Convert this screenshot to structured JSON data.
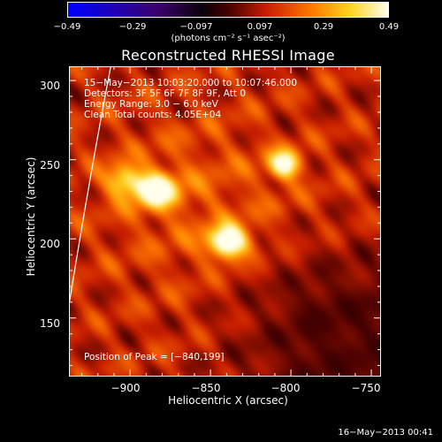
{
  "chart_data": {
    "type": "heatmap",
    "title": "Reconstructed RHESSI Image",
    "xlabel": "Heliocentric X (arcsec)",
    "ylabel": "Heliocentric Y (arcsec)",
    "xlim": [
      -938,
      -744
    ],
    "ylim": [
      113,
      309
    ],
    "x_ticks": [
      "−900",
      "−850",
      "−800",
      "−750"
    ],
    "x_tick_values": [
      -900,
      -850,
      -800,
      -750
    ],
    "y_ticks": [
      "150",
      "200",
      "250",
      "300"
    ],
    "y_tick_values": [
      150,
      200,
      250,
      300
    ],
    "colorbar": {
      "ticks": [
        "−0.49",
        "−0.29",
        "−0.097",
        "0.097",
        "0.29",
        "0.49"
      ],
      "min": -0.49,
      "max": 0.49,
      "units": "(photons cm⁻² s⁻¹ asec⁻²)"
    },
    "annotations": {
      "time_range": "15−May−2013 10:03:20.000 to 10:07:46.000",
      "detectors": "Detectors: 3F 5F 6F 7F 8F 9F, Att 0",
      "energy": "Energy Range: 3.0 − 6.0 keV",
      "clean": "Clean    Total counts: 4.05E+04",
      "peak": "Position of Peak = [−840,199]"
    },
    "sources": [
      {
        "x": -885,
        "y": 232,
        "peak": 0.42,
        "width_x": 12,
        "width_y": 10
      },
      {
        "x": -840,
        "y": 199,
        "peak": 0.49,
        "width_x": 11,
        "width_y": 9
      },
      {
        "x": -805,
        "y": 248,
        "peak": 0.4,
        "width_x": 9,
        "width_y": 8
      },
      {
        "x": -905,
        "y": 238,
        "peak": 0.28,
        "width_x": 10,
        "width_y": 9
      }
    ],
    "background_level": 0.12,
    "limb_curve": [
      [
        -938,
        158
      ],
      [
        -925,
        240
      ],
      [
        -912,
        309
      ]
    ]
  },
  "footer": {
    "timestamp": "16−May−2013 00:41"
  }
}
